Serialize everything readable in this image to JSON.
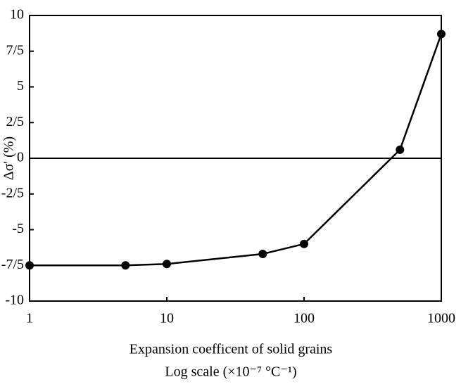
{
  "chart_data": {
    "type": "line",
    "x_label": "Expansion coefficent of solid grains",
    "x_label_2": "Log scale (×10⁻⁷ °C⁻¹)",
    "y_label": "Δσ' (%)",
    "x": [
      1,
      5,
      10,
      50,
      100,
      500,
      1000
    ],
    "series": [
      {
        "color": "#000000",
        "values": [
          -7.5,
          -7.5,
          -7.4,
          -6.7,
          -6.0,
          0.6,
          8.7
        ]
      }
    ],
    "xlim": [
      1,
      1000
    ],
    "xticks": [
      1,
      10,
      100,
      1000
    ],
    "xscale": "log",
    "ylim": [
      -10,
      10
    ],
    "yticks": [
      10,
      {
        "value": 7.5,
        "label": "7/5"
      },
      5,
      {
        "value": 2.5,
        "label": "2/5"
      },
      0,
      {
        "value": -2.5,
        "label": "-2/5"
      },
      -5,
      {
        "value": -7.5,
        "label": "-7/5"
      },
      -10
    ],
    "grid": false
  }
}
